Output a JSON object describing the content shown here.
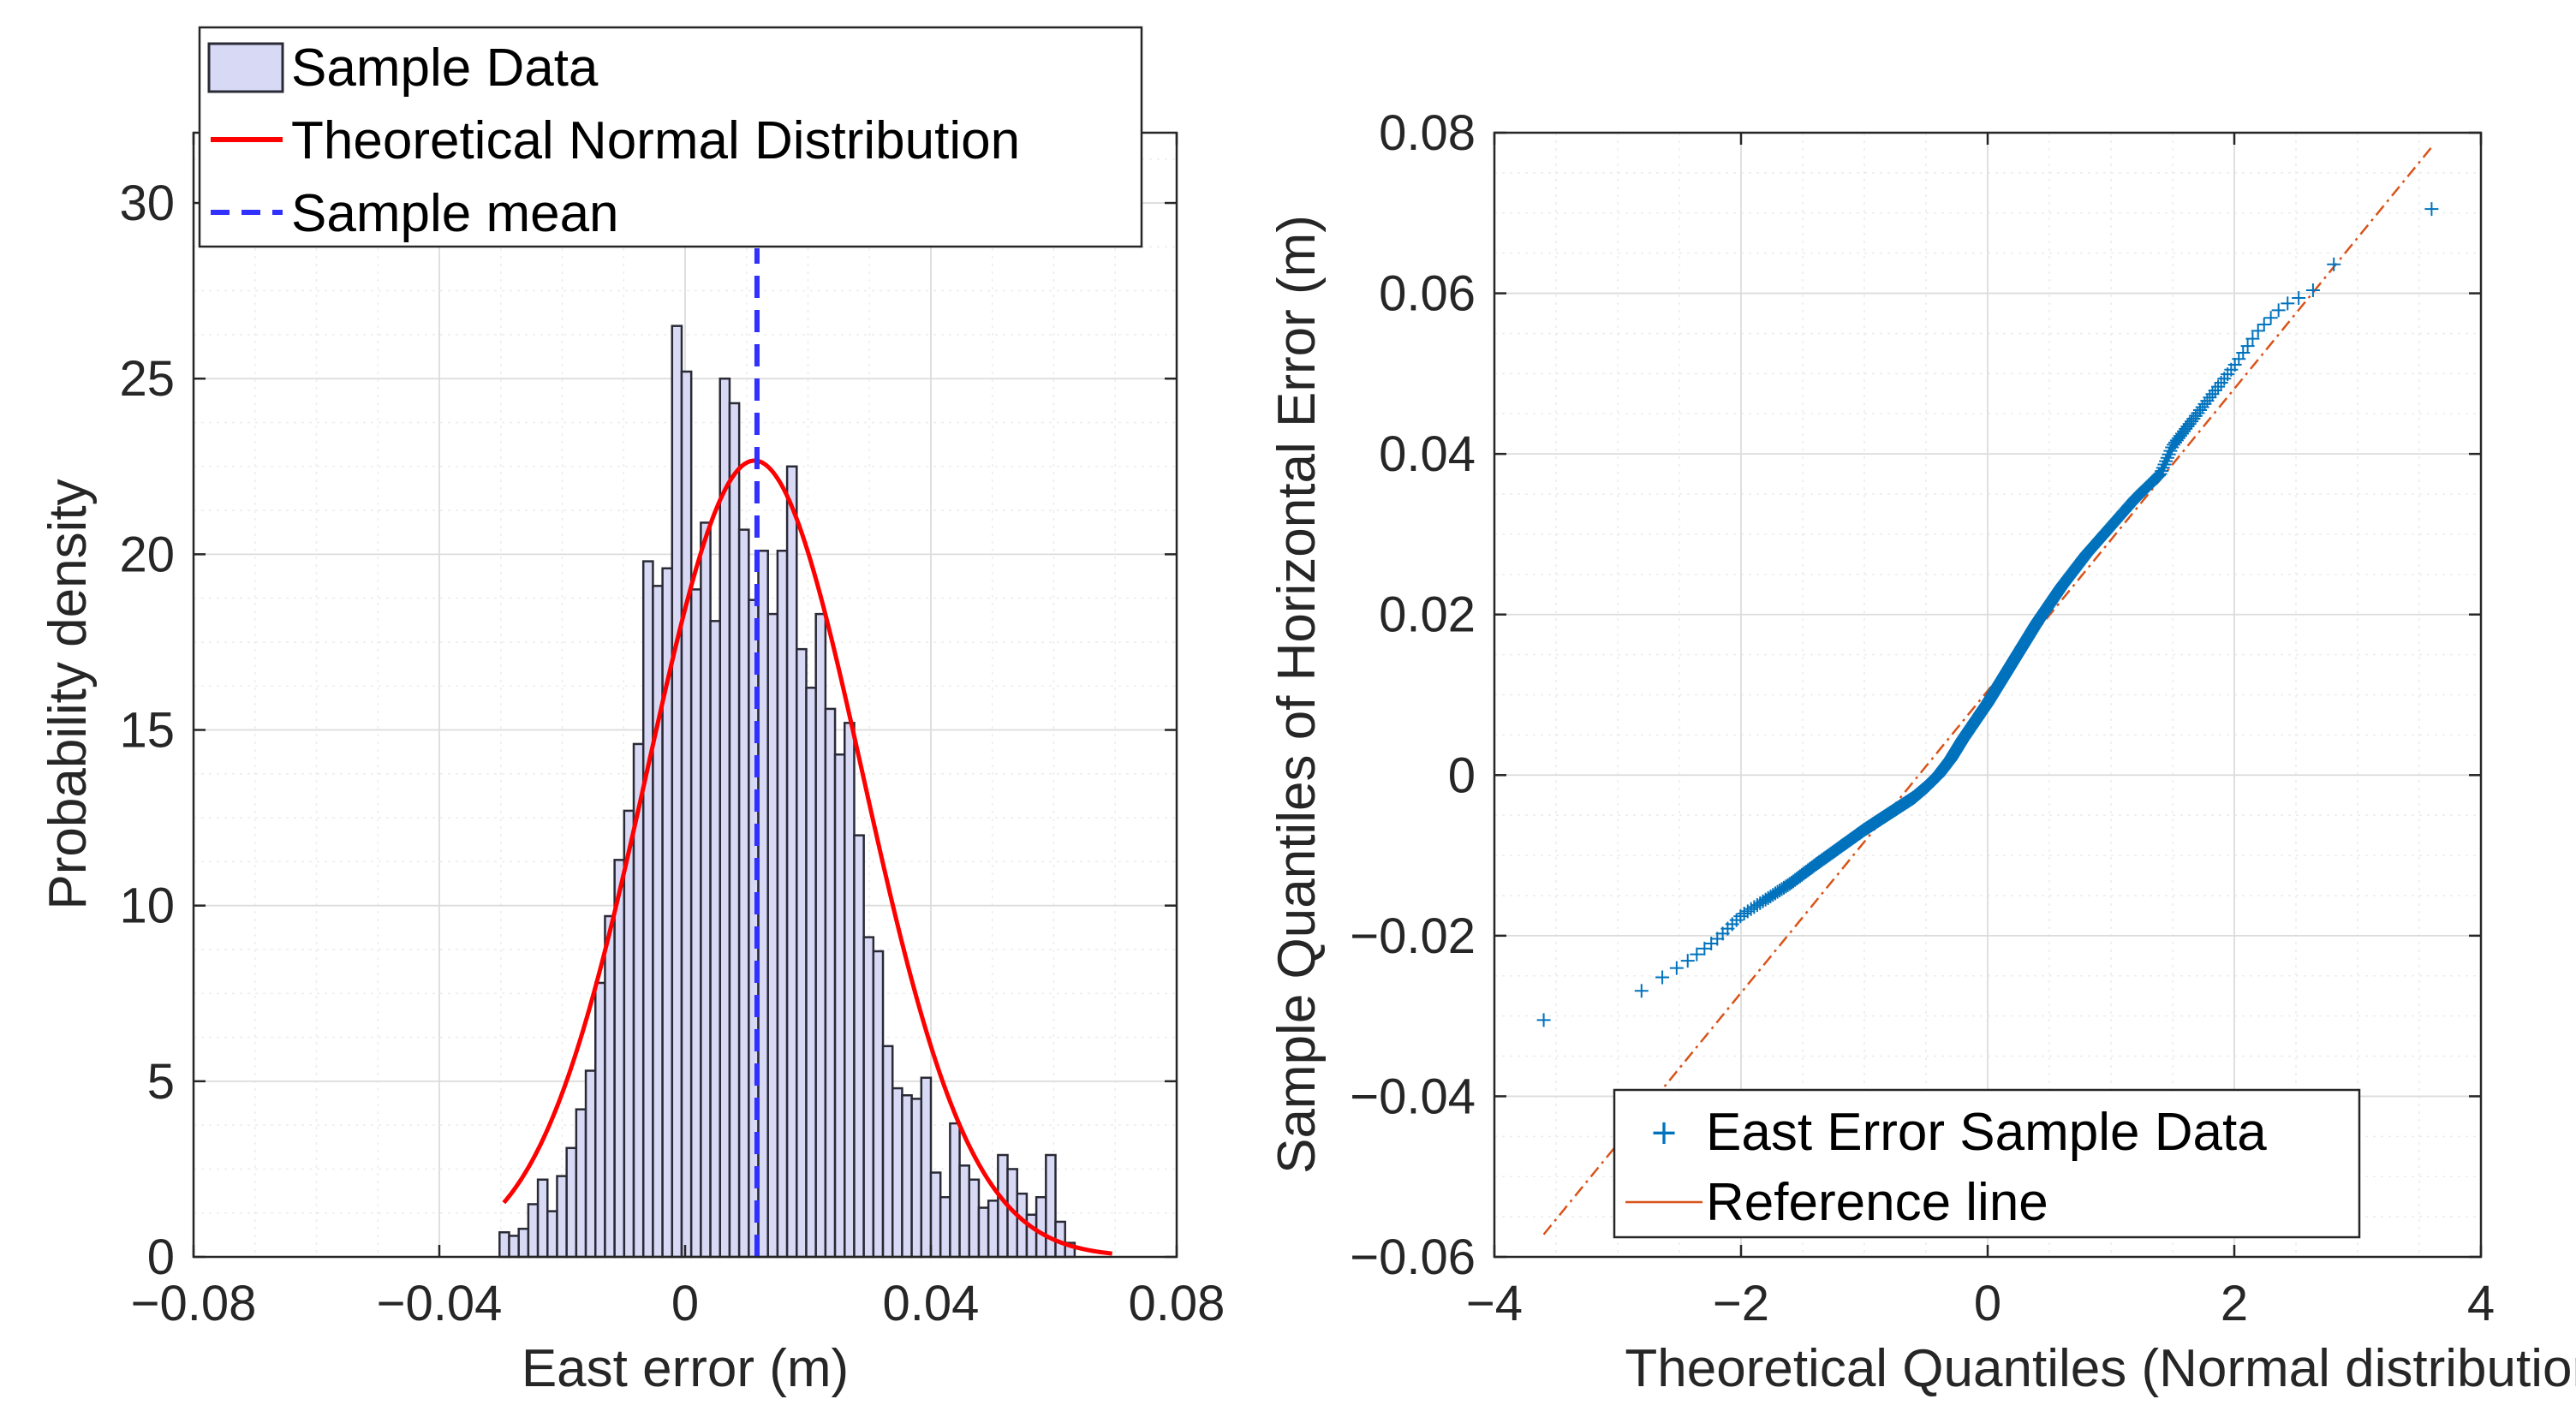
{
  "chart_data": [
    {
      "type": "bar",
      "subtype": "histogram",
      "xlabel": "East error (m)",
      "ylabel": "Probability density",
      "xlim": [
        -0.08,
        0.08
      ],
      "ylim": [
        0,
        32
      ],
      "xticks": [
        -0.08,
        -0.04,
        0,
        0.04,
        0.08
      ],
      "xtick_labels": [
        "−0.08",
        "−0.04",
        "0",
        "0.04",
        "0.08"
      ],
      "yticks": [
        0,
        5,
        10,
        15,
        20,
        25,
        30
      ],
      "ytick_labels": [
        "0",
        "5",
        "10",
        "15",
        "20",
        "25",
        "30"
      ],
      "grid": true,
      "legend_position": "top-left",
      "legend": [
        "Sample Data",
        "Theoretical Normal Distribution",
        "Sample mean"
      ],
      "bin_start": -0.0302,
      "bin_width": 0.00156,
      "values": [
        0.7,
        0.6,
        0.8,
        1.5,
        2.2,
        1.3,
        2.3,
        3.1,
        4.2,
        5.3,
        7.8,
        9.7,
        11.3,
        12.7,
        14.6,
        19.8,
        19.1,
        19.6,
        26.5,
        25.2,
        19.0,
        20.9,
        18.1,
        25.0,
        24.3,
        20.7,
        18.7,
        20.1,
        18.3,
        20.1,
        22.5,
        17.3,
        16.2,
        18.3,
        15.6,
        14.3,
        15.2,
        12.0,
        9.1,
        8.7,
        6.0,
        4.8,
        4.6,
        4.5,
        5.1,
        2.4,
        1.7,
        3.8,
        2.6,
        2.2,
        1.4,
        1.6,
        2.9,
        2.5,
        1.8,
        1.2,
        1.7,
        2.9,
        1.0,
        0.4
      ],
      "series": [
        {
          "name": "Theoretical Normal Distribution",
          "kind": "normal-pdf",
          "mean": 0.0113,
          "std": 0.0176,
          "x_range": [
            -0.0295,
            0.0695
          ]
        },
        {
          "name": "Sample mean",
          "kind": "vline",
          "x": 0.0117
        }
      ],
      "colors": {
        "bar_fill": "#d8d9f5",
        "bar_edge": "#2a2a36",
        "normal": "#ff0000",
        "mean": "#3030ff"
      }
    },
    {
      "type": "scatter",
      "subtype": "qq-plot",
      "xlabel": "Theoretical Quantiles (Normal distribution)",
      "ylabel": "Sample Quantiles of Horizontal Error (m)",
      "xlim": [
        -4,
        4
      ],
      "ylim": [
        -0.06,
        0.08
      ],
      "xticks": [
        -4,
        -2,
        0,
        2,
        4
      ],
      "xtick_labels": [
        "−4",
        "−2",
        "0",
        "2",
        "4"
      ],
      "yticks": [
        -0.06,
        -0.04,
        -0.02,
        0,
        0.02,
        0.04,
        0.06,
        0.08
      ],
      "ytick_labels": [
        "−0.06",
        "−0.04",
        "−0.02",
        "0",
        "0.02",
        "0.04",
        "0.06",
        "0.08"
      ],
      "grid": true,
      "legend_position": "bottom-right",
      "legend": [
        "East Error Sample Data",
        "Reference line"
      ],
      "quantile_curve": {
        "x": [
          -3.6,
          -3.3,
          -3.2,
          -3.1,
          -3.0,
          -2.9,
          -2.8,
          -2.6,
          -2.4,
          -2.2,
          -2.0,
          -1.8,
          -1.6,
          -1.4,
          -1.2,
          -1.0,
          -0.8,
          -0.6,
          -0.5,
          -0.4,
          -0.3,
          -0.2,
          0.0,
          0.2,
          0.4,
          0.6,
          0.8,
          1.0,
          1.2,
          1.4,
          1.5,
          1.6,
          1.8,
          2.0,
          2.2,
          2.4,
          2.6,
          2.7,
          2.8,
          2.9,
          3.0,
          3.1,
          3.2,
          3.6
        ],
        "y": [
          -0.0305,
          -0.0298,
          -0.0296,
          -0.0295,
          -0.0285,
          -0.0278,
          -0.0268,
          -0.0248,
          -0.0228,
          -0.0205,
          -0.0175,
          -0.0155,
          -0.0135,
          -0.0112,
          -0.009,
          -0.0068,
          -0.0048,
          -0.0028,
          -0.0015,
          0.0,
          0.002,
          0.0045,
          0.009,
          0.014,
          0.019,
          0.0235,
          0.0275,
          0.031,
          0.0345,
          0.0375,
          0.041,
          0.043,
          0.047,
          0.051,
          0.0555,
          0.0585,
          0.06,
          0.061,
          0.0635,
          0.065,
          0.066,
          0.067,
          0.0675,
          0.0705
        ]
      },
      "n_points": 600,
      "reference_line": {
        "x": [
          -3.6,
          3.6
        ],
        "y": [
          -0.0572,
          0.0782
        ]
      },
      "colors": {
        "points": "#0072bd",
        "reference": "#d95319"
      }
    }
  ]
}
